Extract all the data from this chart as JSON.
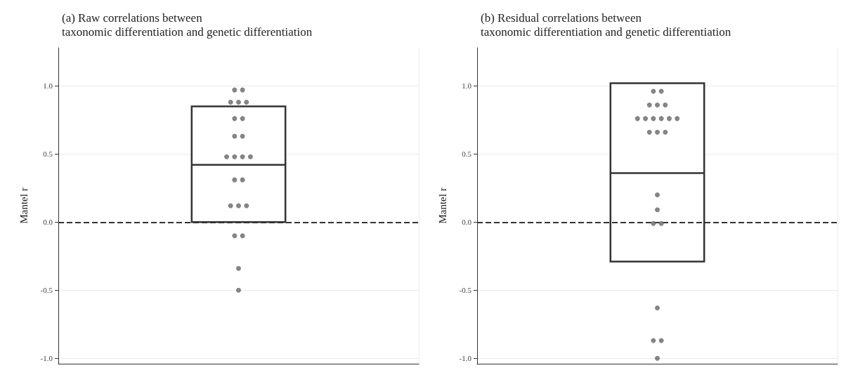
{
  "chart_data": [
    {
      "type": "box",
      "title": "(a) Raw correlations between\ntaxonomic differentiation and genetic differentiation",
      "ylabel": "Mantel r",
      "categories": [
        null
      ],
      "ylim": [
        -1.04,
        1.28
      ],
      "yticks": [
        {
          "value": -1,
          "label": "-1.0"
        },
        {
          "value": -0.5,
          "label": "-0.5"
        },
        {
          "value": 0,
          "label": "0.0"
        },
        {
          "value": 0.5,
          "label": "0.5"
        },
        {
          "value": 1,
          "label": "1.0"
        }
      ],
      "grid": true,
      "ref_lines": [
        {
          "axis": "y",
          "value": 0,
          "color": "#333333",
          "line_style": "dashed"
        }
      ],
      "series": [
        {
          "type": "box",
          "color": "#333333",
          "boxes": [
            {
              "low": 0.0,
              "q1": 0.0,
              "median": 0.42,
              "q3": 0.85,
              "high": 0.85
            }
          ]
        },
        {
          "type": "scatter",
          "color": "#666666",
          "marker": "circle",
          "x": [
            null,
            null,
            null,
            null,
            null,
            null,
            null,
            null,
            null,
            null,
            null,
            null,
            null,
            null,
            null,
            null,
            null,
            null,
            null,
            null,
            null,
            null
          ],
          "values": [
            0.97,
            0.97,
            0.88,
            0.88,
            0.88,
            0.76,
            0.76,
            0.63,
            0.63,
            0.48,
            0.48,
            0.48,
            0.48,
            0.31,
            0.31,
            0.12,
            0.12,
            0.12,
            -0.1,
            -0.1,
            -0.34,
            -0.5
          ]
        }
      ]
    },
    {
      "type": "box",
      "title": "(b) Residual correlations between\ntaxonomic differentiation and genetic differentiation",
      "ylabel": "Mantel r",
      "categories": [
        null
      ],
      "ylim": [
        -1.04,
        1.28
      ],
      "yticks": [
        {
          "value": -1,
          "label": "-1.0"
        },
        {
          "value": -0.5,
          "label": "-0.5"
        },
        {
          "value": 0,
          "label": "0.0"
        },
        {
          "value": 0.5,
          "label": "0.5"
        },
        {
          "value": 1,
          "label": "1.0"
        }
      ],
      "grid": true,
      "ref_lines": [
        {
          "axis": "y",
          "value": 0,
          "color": "#333333",
          "line_style": "dashed"
        }
      ],
      "series": [
        {
          "type": "box",
          "color": "#333333",
          "boxes": [
            {
              "low": -0.29,
              "q1": -0.29,
              "median": 0.36,
              "q3": 1.02,
              "high": 1.02
            }
          ]
        },
        {
          "type": "scatter",
          "color": "#666666",
          "marker": "circle",
          "x": [
            null,
            null,
            null,
            null,
            null,
            null,
            null,
            null,
            null,
            null,
            null,
            null,
            null,
            null,
            null,
            null,
            null,
            null,
            null,
            null,
            null,
            null
          ],
          "values": [
            0.96,
            0.96,
            0.86,
            0.86,
            0.86,
            0.76,
            0.76,
            0.76,
            0.76,
            0.76,
            0.76,
            0.66,
            0.66,
            0.66,
            0.2,
            0.09,
            -0.01,
            -0.01,
            -0.63,
            -0.87,
            -0.87,
            -1.0
          ]
        }
      ]
    }
  ]
}
